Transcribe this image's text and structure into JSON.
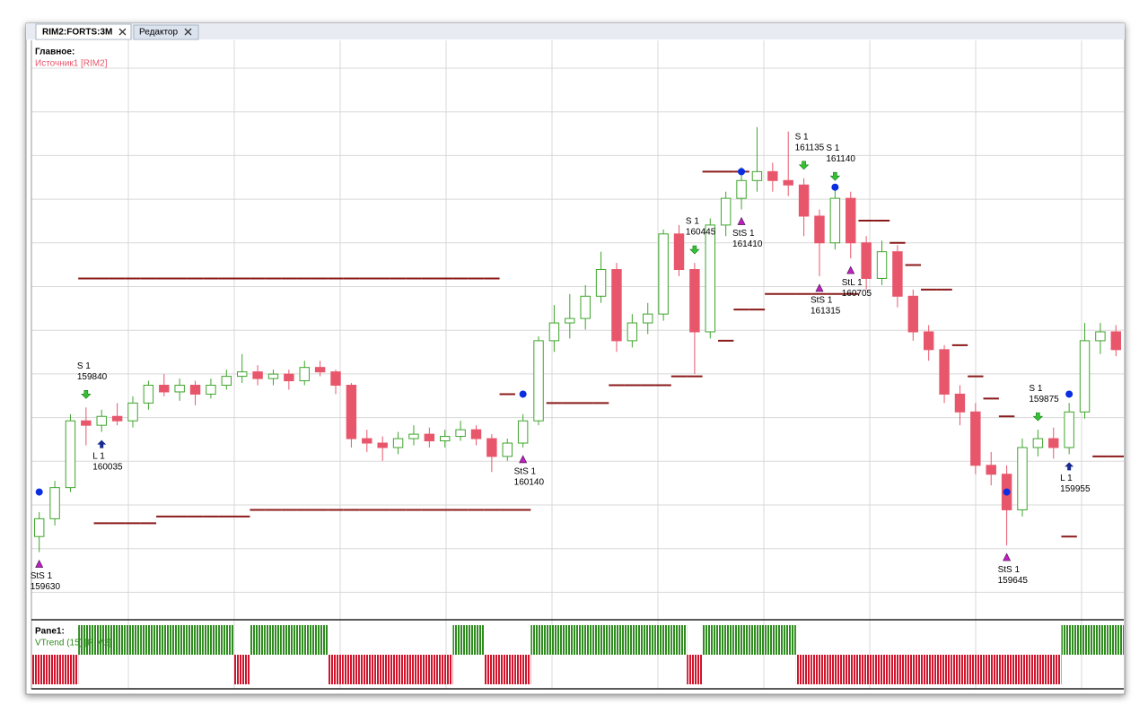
{
  "tabs": [
    "RIM2:FORTS:3M",
    "Редактор"
  ],
  "chart_data": {
    "type": "candlestick",
    "title": "Главное:",
    "source": "Источник1 [RIM2]",
    "ylim": [
      159280,
      161880
    ],
    "up_color": "#3ea52c",
    "down_color": "#e8566c",
    "level_color": "#8b1a1a",
    "candles": [
      [
        159650,
        159760,
        159580,
        159730
      ],
      [
        159730,
        159900,
        159700,
        159870
      ],
      [
        159870,
        160200,
        159850,
        160170
      ],
      [
        160170,
        160230,
        160060,
        160150
      ],
      [
        160150,
        160220,
        160120,
        160190
      ],
      [
        160190,
        160250,
        160150,
        160170
      ],
      [
        160170,
        160280,
        160140,
        160250
      ],
      [
        160250,
        160350,
        160220,
        160330
      ],
      [
        160330,
        160380,
        160280,
        160300
      ],
      [
        160300,
        160360,
        160260,
        160330
      ],
      [
        160330,
        160350,
        160240,
        160290
      ],
      [
        160290,
        160360,
        160270,
        160330
      ],
      [
        160330,
        160400,
        160310,
        160370
      ],
      [
        160370,
        160470,
        160340,
        160390
      ],
      [
        160390,
        160420,
        160330,
        160360
      ],
      [
        160360,
        160400,
        160330,
        160380
      ],
      [
        160380,
        160400,
        160310,
        160350
      ],
      [
        160350,
        160440,
        160330,
        160410
      ],
      [
        160410,
        160440,
        160370,
        160390
      ],
      [
        160390,
        160400,
        160290,
        160330
      ],
      [
        160330,
        160340,
        160050,
        160090
      ],
      [
        160090,
        160130,
        160030,
        160070
      ],
      [
        160070,
        160100,
        159990,
        160050
      ],
      [
        160050,
        160120,
        160020,
        160090
      ],
      [
        160090,
        160150,
        160060,
        160110
      ],
      [
        160110,
        160140,
        160050,
        160080
      ],
      [
        160080,
        160130,
        160050,
        160100
      ],
      [
        160100,
        160170,
        160080,
        160130
      ],
      [
        160130,
        160150,
        160060,
        160090
      ],
      [
        160090,
        160110,
        159940,
        160010
      ],
      [
        160010,
        160090,
        159990,
        160070
      ],
      [
        160070,
        160200,
        160050,
        160170
      ],
      [
        160170,
        160550,
        160150,
        160530
      ],
      [
        160530,
        160690,
        160480,
        160610
      ],
      [
        160610,
        160740,
        160540,
        160630
      ],
      [
        160630,
        160780,
        160580,
        160730
      ],
      [
        160730,
        160930,
        160700,
        160850
      ],
      [
        160850,
        160880,
        160480,
        160530
      ],
      [
        160530,
        160650,
        160500,
        160610
      ],
      [
        160610,
        160700,
        160560,
        160650
      ],
      [
        160650,
        161030,
        160620,
        161010
      ],
      [
        161010,
        161050,
        160820,
        160850
      ],
      [
        160850,
        160880,
        160380,
        160570
      ],
      [
        160570,
        161080,
        160540,
        161050
      ],
      [
        161050,
        161200,
        161000,
        161170
      ],
      [
        161170,
        161310,
        161120,
        161250
      ],
      [
        161250,
        161490,
        161200,
        161290
      ],
      [
        161290,
        161330,
        161200,
        161250
      ],
      [
        161250,
        161470,
        161180,
        161230
      ],
      [
        161230,
        161260,
        161000,
        161090
      ],
      [
        161090,
        161120,
        160820,
        160970
      ],
      [
        160970,
        161210,
        160940,
        161170
      ],
      [
        161170,
        161200,
        160900,
        160970
      ],
      [
        160970,
        161000,
        160760,
        160810
      ],
      [
        160810,
        160980,
        160780,
        160930
      ],
      [
        160930,
        160960,
        160680,
        160730
      ],
      [
        160730,
        160760,
        160530,
        160570
      ],
      [
        160570,
        160600,
        160440,
        160490
      ],
      [
        160490,
        160510,
        160250,
        160290
      ],
      [
        160290,
        160330,
        160150,
        160210
      ],
      [
        160210,
        160250,
        159930,
        159970
      ],
      [
        159970,
        160030,
        159880,
        159930
      ],
      [
        159930,
        159970,
        159610,
        159770
      ],
      [
        159770,
        160090,
        159740,
        160050
      ],
      [
        160050,
        160130,
        160010,
        160090
      ],
      [
        160090,
        160140,
        160000,
        160050
      ],
      [
        160050,
        160250,
        160020,
        160210
      ],
      [
        160210,
        160610,
        160180,
        160530
      ],
      [
        160530,
        160610,
        160470,
        160570
      ],
      [
        160570,
        160600,
        160460,
        160490
      ]
    ],
    "levels": [
      [
        null,
        null,
        null,
        160810,
        160810,
        160810,
        160810,
        160810,
        160810,
        160810,
        160810,
        160810,
        160810,
        160810,
        160810,
        160810,
        160810,
        160810,
        160810,
        160810,
        160810,
        160810,
        160810,
        160810,
        160810,
        160810,
        160810,
        160810,
        160810,
        160810,
        160290,
        null,
        null,
        null,
        null,
        null,
        null,
        null,
        null,
        null,
        null,
        null,
        null,
        161290,
        161290,
        161290,
        null,
        null,
        null,
        null,
        null,
        null,
        null,
        161070,
        161070,
        160970,
        160870,
        160760,
        160760,
        160510,
        160370,
        160270,
        160190,
        null,
        null,
        null,
        null,
        null,
        160010,
        160010
      ],
      [
        null,
        null,
        null,
        null,
        159710,
        159710,
        159710,
        159710,
        159740,
        159740,
        159740,
        159740,
        159740,
        159740,
        159770,
        159770,
        159770,
        159770,
        159770,
        159770,
        159770,
        159770,
        159770,
        159770,
        159770,
        159770,
        159770,
        159770,
        159770,
        159770,
        159770,
        159770,
        null,
        160250,
        160250,
        160250,
        160250,
        160330,
        160330,
        160330,
        160330,
        160370,
        160370,
        null,
        160530,
        160670,
        160670,
        160740,
        160740,
        160740,
        160740,
        160740,
        160740,
        null,
        null,
        null,
        null,
        null,
        null,
        null,
        null,
        null,
        null,
        null,
        null,
        null,
        159650,
        null,
        null,
        null
      ]
    ],
    "dots": [
      {
        "candle": 0,
        "value": 159850
      },
      {
        "candle": 31,
        "value": 160290
      },
      {
        "candle": 45,
        "value": 161290
      },
      {
        "candle": 51,
        "value": 161220
      },
      {
        "candle": 62,
        "value": 159850
      },
      {
        "candle": 66,
        "value": 160290
      }
    ],
    "dot_color": "#0a2ee0",
    "signals": [
      {
        "label": "StS 1",
        "price": 159630,
        "candle": 0,
        "kind": "stop"
      },
      {
        "label": "S 1",
        "price": 159840,
        "candle": 3,
        "kind": "sell"
      },
      {
        "label": "L 1",
        "price": 160035,
        "candle": 4,
        "kind": "buy"
      },
      {
        "label": "StS 1",
        "price": 160140,
        "candle": 31,
        "kind": "stop"
      },
      {
        "label": "S 1",
        "price": 160445,
        "candle": 42,
        "kind": "sell"
      },
      {
        "label": "StS 1",
        "price": 161410,
        "candle": 45,
        "kind": "stop"
      },
      {
        "label": "S 1",
        "price": 161135,
        "candle": 49,
        "kind": "sell"
      },
      {
        "label": "StS 1",
        "price": 161315,
        "candle": 50,
        "kind": "stop"
      },
      {
        "label": "S 1",
        "price": 161140,
        "candle": 51,
        "kind": "sell"
      },
      {
        "label": "StL 1",
        "price": 160705,
        "candle": 52,
        "kind": "stop"
      },
      {
        "label": "StS 1",
        "price": 159645,
        "candle": 62,
        "kind": "stop"
      },
      {
        "label": "S 1",
        "price": 159875,
        "candle": 64,
        "kind": "sell"
      },
      {
        "label": "L 1",
        "price": 159955,
        "candle": 66,
        "kind": "buy"
      }
    ],
    "pane": {
      "title": "Pane1:",
      "indicator": "VTrend (15) [RIM2]",
      "ylim": [
        -1,
        1
      ],
      "trend": [
        -1,
        -1,
        -1,
        1,
        1,
        1,
        1,
        1,
        1,
        1,
        1,
        1,
        1,
        -1,
        1,
        1,
        1,
        1,
        1,
        -1,
        -1,
        -1,
        -1,
        -1,
        -1,
        -1,
        -1,
        1,
        1,
        -1,
        -1,
        -1,
        1,
        1,
        1,
        1,
        1,
        1,
        1,
        1,
        1,
        1,
        -1,
        1,
        1,
        1,
        1,
        1,
        1,
        -1,
        -1,
        -1,
        -1,
        -1,
        -1,
        -1,
        -1,
        -1,
        -1,
        -1,
        -1,
        -1,
        -1,
        -1,
        -1,
        -1,
        1,
        1,
        1,
        1
      ],
      "up_color": "#2e8b1e",
      "down_color": "#d0142c"
    }
  }
}
